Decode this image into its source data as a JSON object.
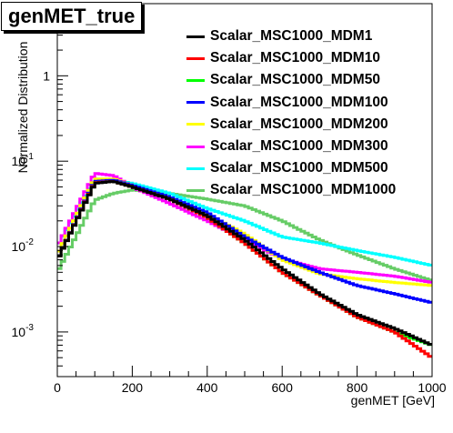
{
  "chart_data": {
    "type": "line",
    "title": "genMET_true",
    "xlabel": "genMET [GeV]",
    "ylabel": "Normalized Distribution",
    "xlim": [
      0,
      1000
    ],
    "ylim": [
      0.0003,
      7
    ],
    "yscale": "log",
    "grid": false,
    "legend_position": "top-right",
    "x_ticks": [
      "0",
      "200",
      "400",
      "600",
      "800",
      "1000"
    ],
    "y_ticks": [
      {
        "value": 0.001,
        "label": "10^{-3}"
      },
      {
        "value": 0.01,
        "label": "10^{-2}"
      },
      {
        "value": 0.1,
        "label": "10^{-1}"
      },
      {
        "value": 1,
        "label": "1"
      }
    ],
    "x": [
      0,
      100,
      150,
      200,
      300,
      400,
      500,
      600,
      700,
      800,
      900,
      1000
    ],
    "series": [
      {
        "name": "Scalar_MSC1000_MDM1",
        "color": "#000000",
        "values": [
          0.007,
          0.055,
          0.058,
          0.05,
          0.036,
          0.023,
          0.012,
          0.0055,
          0.0028,
          0.0016,
          0.0011,
          0.0007
        ]
      },
      {
        "name": "Scalar_MSC1000_MDM10",
        "color": "#ff0000",
        "values": [
          0.007,
          0.056,
          0.058,
          0.05,
          0.036,
          0.022,
          0.011,
          0.005,
          0.0027,
          0.0015,
          0.001,
          0.0005
        ]
      },
      {
        "name": "Scalar_MSC1000_MDM50",
        "color": "#00ff00",
        "values": [
          0.007,
          0.056,
          0.058,
          0.05,
          0.036,
          0.022,
          0.011,
          0.005,
          0.0027,
          0.0015,
          0.001,
          0.0007
        ]
      },
      {
        "name": "Scalar_MSC1000_MDM100",
        "color": "#0000ff",
        "values": [
          0.007,
          0.058,
          0.06,
          0.052,
          0.038,
          0.025,
          0.013,
          0.0075,
          0.005,
          0.0035,
          0.0028,
          0.0022
        ]
      },
      {
        "name": "Scalar_MSC1000_MDM200",
        "color": "#ffff00",
        "values": [
          0.008,
          0.062,
          0.062,
          0.052,
          0.036,
          0.024,
          0.014,
          0.007,
          0.0048,
          0.0042,
          0.0038,
          0.0035
        ]
      },
      {
        "name": "Scalar_MSC1000_MDM300",
        "color": "#ff00ff",
        "values": [
          0.01,
          0.072,
          0.068,
          0.05,
          0.032,
          0.02,
          0.012,
          0.0072,
          0.0055,
          0.005,
          0.0045,
          0.0038
        ]
      },
      {
        "name": "Scalar_MSC1000_MDM500",
        "color": "#00ffff",
        "values": [
          0.01,
          0.062,
          0.06,
          0.055,
          0.042,
          0.028,
          0.02,
          0.013,
          0.011,
          0.009,
          0.0075,
          0.006
        ]
      },
      {
        "name": "Scalar_MSC1000_MDM1000",
        "color": "#66cc66",
        "values": [
          0.005,
          0.035,
          0.042,
          0.046,
          0.042,
          0.036,
          0.03,
          0.02,
          0.012,
          0.008,
          0.0055,
          0.004
        ]
      }
    ]
  }
}
